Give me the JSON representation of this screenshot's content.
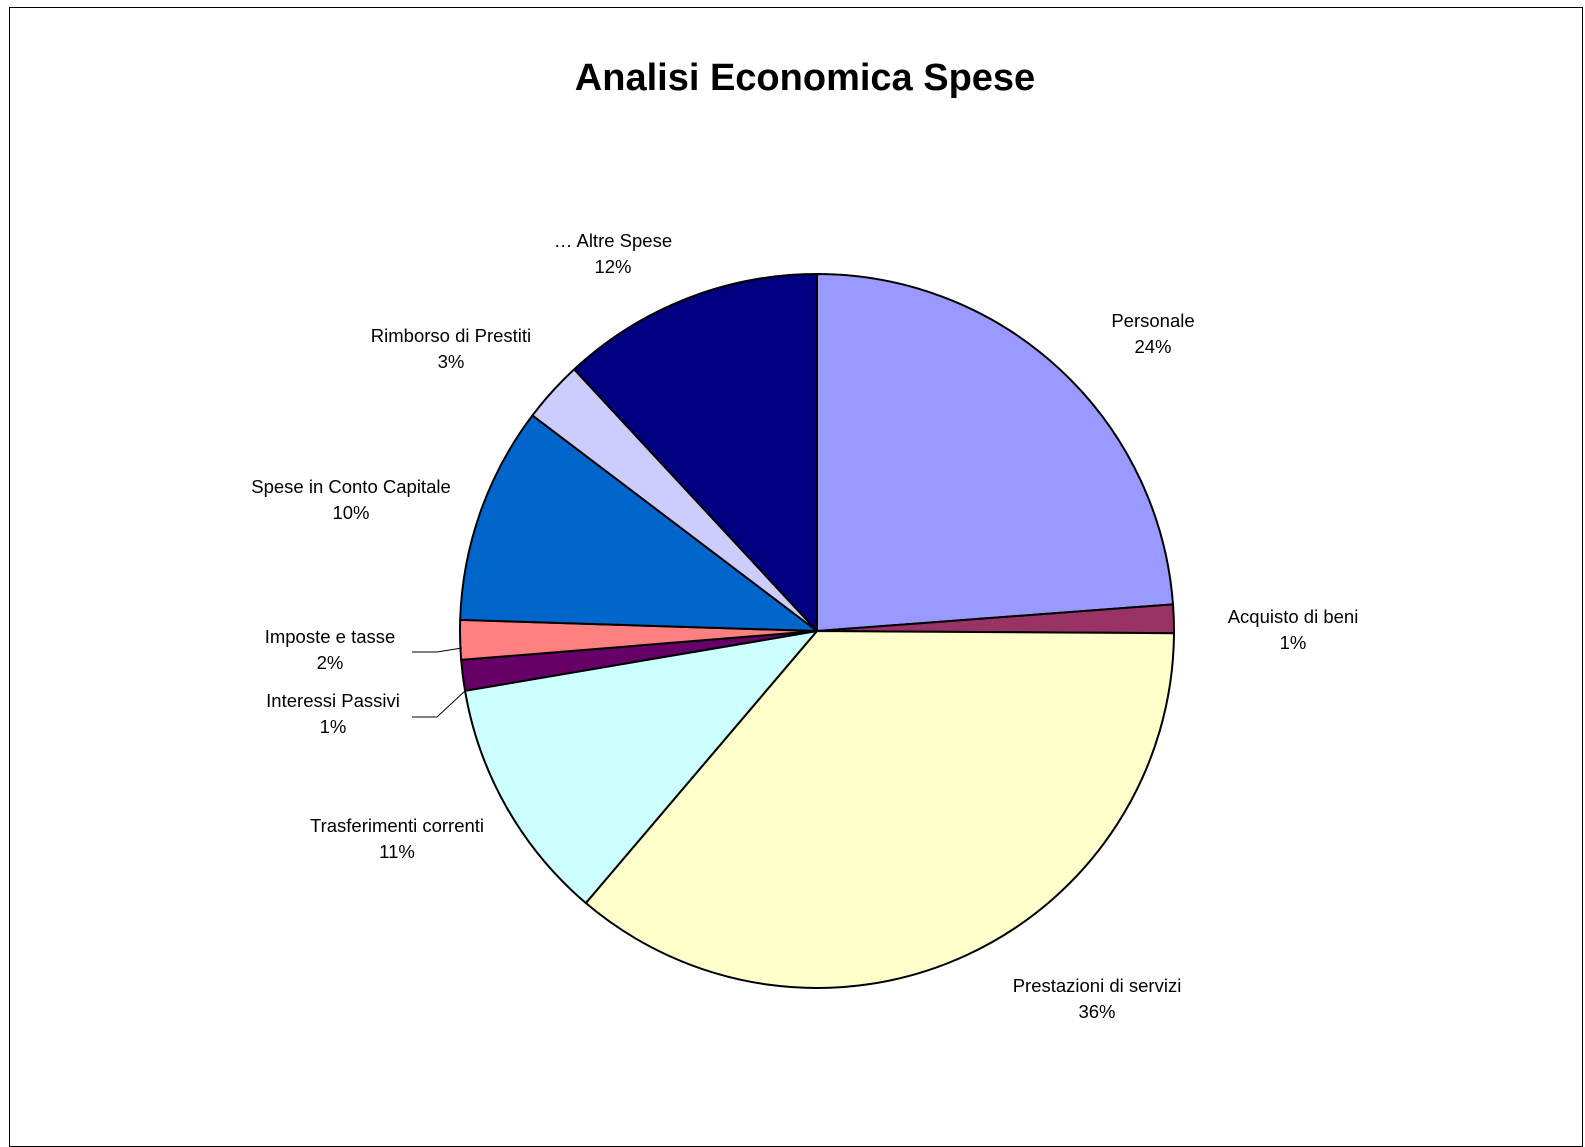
{
  "chart_data": {
    "type": "pie",
    "title": "Analisi Economica Spese",
    "start_angle_deg": 0,
    "direction": "clockwise",
    "slices": [
      {
        "label": "Personale",
        "value": 24,
        "percent_label": "24%",
        "color": "#9999FF"
      },
      {
        "label": "Acquisto di beni",
        "value": 1.3,
        "percent_label": "1%",
        "color": "#993366"
      },
      {
        "label": "Prestazioni di servizi",
        "value": 36.4,
        "percent_label": "36%",
        "color": "#FFFFCC"
      },
      {
        "label": "Trasferimenti correnti",
        "value": 11.2,
        "percent_label": "11%",
        "color": "#CCFFFF"
      },
      {
        "label": "Interessi Passivi",
        "value": 1.4,
        "percent_label": "1%",
        "color": "#660066"
      },
      {
        "label": "Imposte e tasse",
        "value": 1.8,
        "percent_label": "2%",
        "color": "#FF8080"
      },
      {
        "label": "Spese in Conto Capitale",
        "value": 9.9,
        "percent_label": "10%",
        "color": "#0066CC"
      },
      {
        "label": "Rimborso di Prestiti",
        "value": 2.8,
        "percent_label": "3%",
        "color": "#CCCCFF"
      },
      {
        "label": "… Altre Spese",
        "value": 12.0,
        "percent_label": "12%",
        "color": "#000080"
      }
    ]
  }
}
